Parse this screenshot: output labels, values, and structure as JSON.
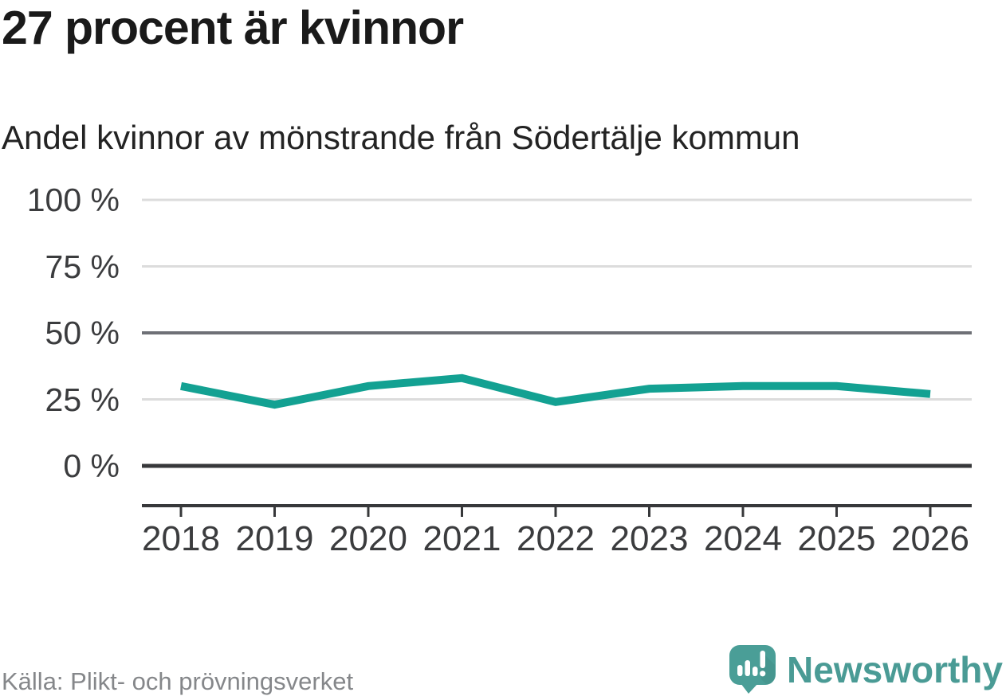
{
  "header": {
    "title": "27 procent är kvinnor",
    "subtitle": "Andel kvinnor av mönstrande från Södertälje kommun"
  },
  "footer": {
    "source": "Källa: Plikt- och prövningsverket",
    "brand": "Newsworthy"
  },
  "colors": {
    "accent_line": "#13a192",
    "grid_light": "#dcdcdc",
    "grid_strong": "#6e7076",
    "axis_dark": "#37383a",
    "axis_text": "#3b3c3e",
    "muted_text": "#85878a",
    "brand_teal": "#4a9b95",
    "logo_icon_teal": "#4a9e97"
  },
  "chart_data": {
    "type": "line",
    "title": "27 procent är kvinnor",
    "subtitle": "Andel kvinnor av mönstrande från Södertälje kommun",
    "categories": [
      "2018",
      "2019",
      "2020",
      "2021",
      "2022",
      "2023",
      "2024",
      "2025",
      "2026"
    ],
    "series": [
      {
        "name": "Andel kvinnor av mönstrande",
        "color": "#13a192",
        "values": [
          30,
          23,
          30,
          33,
          24,
          29,
          30,
          30,
          27
        ]
      }
    ],
    "xlabel": "",
    "ylabel": "",
    "ylim": [
      0,
      100
    ],
    "yticks": [
      {
        "value": 0,
        "label": "0 %",
        "style": "zero"
      },
      {
        "value": 25,
        "label": "25 %",
        "style": "light"
      },
      {
        "value": 50,
        "label": "50 %",
        "style": "strong"
      },
      {
        "value": 75,
        "label": "75 %",
        "style": "light"
      },
      {
        "value": 100,
        "label": "100 %",
        "style": "light"
      }
    ],
    "grid": "horizontal",
    "legend": "none"
  }
}
